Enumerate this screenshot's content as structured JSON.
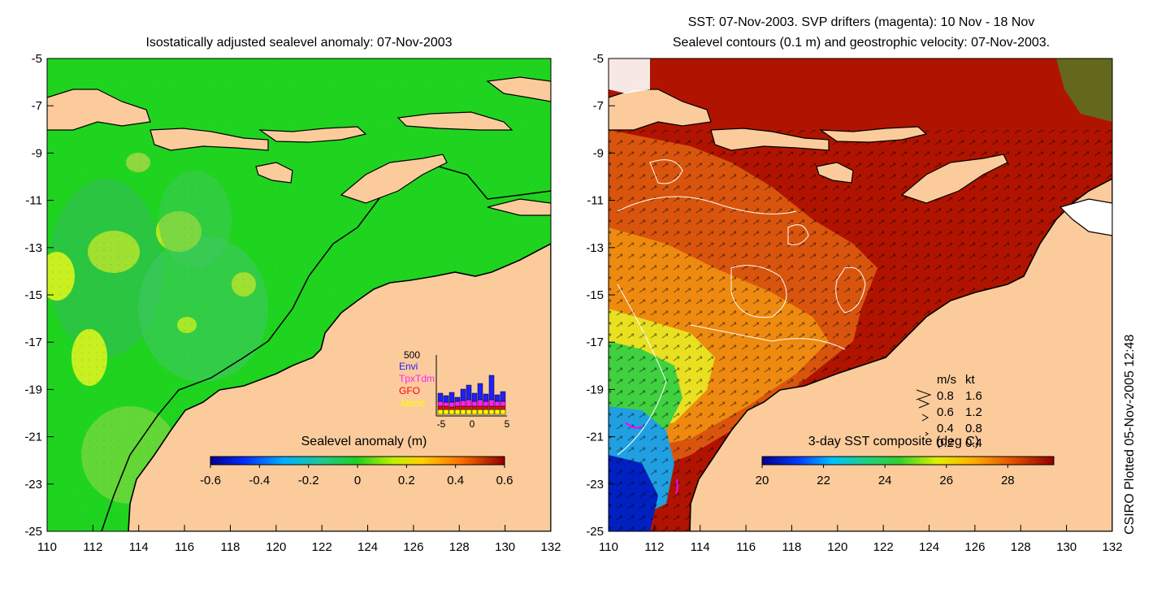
{
  "left_panel": {
    "title": "Isostatically adjusted sealevel anomaly: 07-Nov-2003",
    "lat_ticks": [
      "-5",
      "-7",
      "-9",
      "-11",
      "-13",
      "-15",
      "-17",
      "-19",
      "-21",
      "-23",
      "-25"
    ],
    "lon_ticks": [
      "110",
      "112",
      "114",
      "116",
      "118",
      "120",
      "122",
      "124",
      "126",
      "128",
      "130",
      "132"
    ],
    "colorbar": {
      "title": "Sealevel anomaly (m)",
      "ticks": [
        "-0.6",
        "-0.4",
        "-0.2",
        "0",
        "0.2",
        "0.4",
        "0.6"
      ],
      "range": [
        -0.6,
        0.6
      ]
    },
    "satellite_inset": {
      "ymax_label": "500",
      "satellites": [
        "Envi",
        "TpxTdm",
        "GFO",
        "Jason"
      ],
      "colors": {
        "Envi": "#2020ff",
        "TpxTdm": "#ff20ff",
        "GFO": "#ff0000",
        "Jason": "#ffff00"
      },
      "x_ticks": [
        "-5",
        "0",
        "5"
      ]
    }
  },
  "right_panel": {
    "title_line1": "SST: 07-Nov-2003. SVP drifters (magenta): 10 Nov - 18 Nov",
    "title_line2": "Sealevel contours (0.1 m) and geostrophic velocity: 07-Nov-2003.",
    "lat_ticks": [
      "-5",
      "-7",
      "-9",
      "-11",
      "-13",
      "-15",
      "-17",
      "-19",
      "-21",
      "-23",
      "-25"
    ],
    "lon_ticks": [
      "110",
      "112",
      "114",
      "116",
      "118",
      "120",
      "122",
      "124",
      "126",
      "128",
      "130",
      "132"
    ],
    "colorbar": {
      "title": "3-day SST composite (deg C)",
      "ticks": [
        "20",
        "22",
        "24",
        "26",
        "28"
      ],
      "range": [
        20,
        29.5
      ]
    },
    "velocity_legend": {
      "header_ms": "m/s",
      "header_kt": "kt",
      "rows": [
        {
          "ms": "0.8",
          "kt": "1.6"
        },
        {
          "ms": "0.6",
          "kt": "1.2"
        },
        {
          "ms": "0.4",
          "kt": "0.8"
        },
        {
          "ms": "0.2",
          "kt": "0.4"
        }
      ]
    }
  },
  "credit": "CSIRO Plotted 05-Nov-2005 12:48",
  "colors": {
    "land": "#fbcb9c",
    "ocean_left": "#1fd41f",
    "sst_warm": "#b01400",
    "coast": "#000000"
  }
}
